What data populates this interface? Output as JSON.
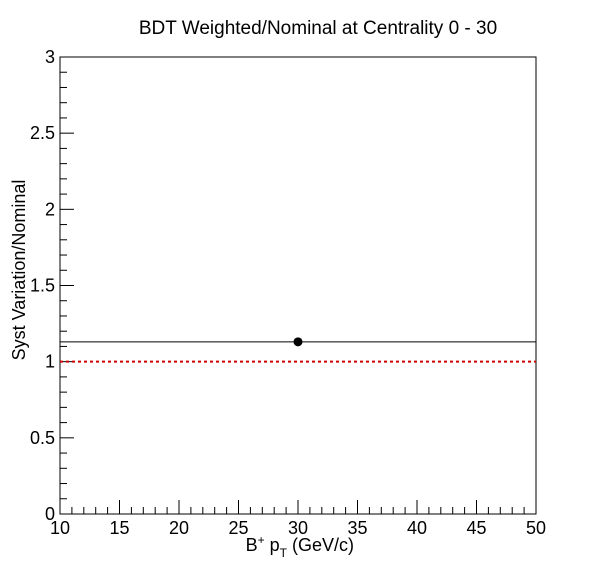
{
  "chart_data": {
    "type": "scatter",
    "title": "BDT Weighted/Nominal at Centrality 0 - 30",
    "xlabel": {
      "main": "B",
      "sup": "+",
      "p": "p",
      "sub": "T",
      "unit": "(GeV/c)"
    },
    "ylabel": "Syst Variation/Nominal",
    "xlim": [
      10,
      50
    ],
    "ylim": [
      0,
      3
    ],
    "x_ticks": [
      "10",
      "15",
      "20",
      "25",
      "30",
      "35",
      "40",
      "45",
      "50"
    ],
    "y_ticks": [
      "0",
      "0.5",
      "1",
      "1.5",
      "2",
      "2.5",
      "3"
    ],
    "series": [
      {
        "points": [
          {
            "x": 30,
            "y": 1.13,
            "xerr": [
              10,
              50
            ]
          }
        ],
        "color": "#000000"
      }
    ],
    "reference_line": {
      "y": 1.0,
      "color": "#cc0000",
      "style": "dotted"
    },
    "grid": false
  }
}
